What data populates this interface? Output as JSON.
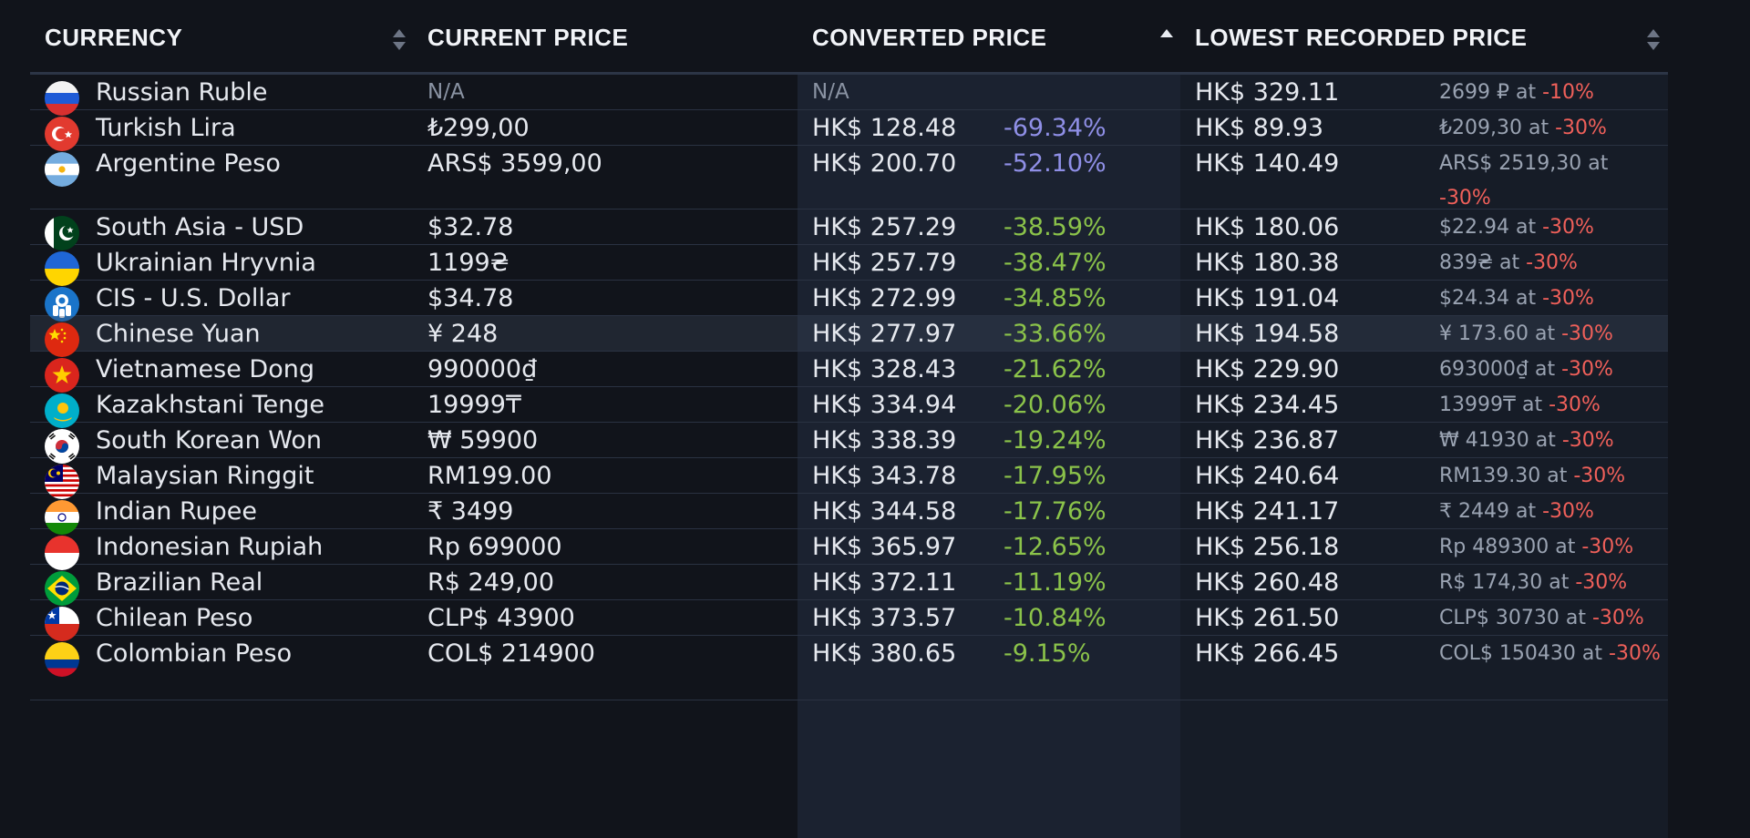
{
  "header": {
    "currency": "CURRENCY",
    "current_price": "CURRENT PRICE",
    "converted_price": "CONVERTED PRICE",
    "lowest_recorded_price": "LOWEST RECORDED PRICE"
  },
  "colors": {
    "background": "#11141b",
    "converted_column": "#1b2230",
    "lowest_column": "#161c27",
    "diff_blue": "#8f8fe6",
    "diff_green": "#8bc34a",
    "discount_red": "#f0605a"
  },
  "rows": [
    {
      "flag": "russia-flag-icon",
      "currency": "Russian Ruble",
      "current": "N/A",
      "converted": "N/A",
      "diff": "",
      "lowest": "HK$ 329.11",
      "lowest_detail": "2699 ₽ at",
      "lowest_pct": "-10%"
    },
    {
      "flag": "turkey-flag-icon",
      "currency": "Turkish Lira",
      "current": "₺299,00",
      "converted": "HK$ 128.48",
      "diff": "-69.34%",
      "lowest": "HK$ 89.93",
      "lowest_detail": "₺209,30 at",
      "lowest_pct": "-30%"
    },
    {
      "flag": "argentina-flag-icon",
      "currency": "Argentine Peso",
      "current": "ARS$ 3599,00",
      "converted": "HK$ 200.70",
      "diff": "-52.10%",
      "lowest": "HK$ 140.49",
      "lowest_detail": "ARS$ 2519,30 at",
      "lowest_pct": "-30%"
    },
    {
      "flag": "pakistan-flag-icon",
      "currency": "South Asia - USD",
      "current": "$32.78",
      "converted": "HK$ 257.29",
      "diff": "-38.59%",
      "lowest": "HK$ 180.06",
      "lowest_detail": "$22.94 at",
      "lowest_pct": "-30%"
    },
    {
      "flag": "ukraine-flag-icon",
      "currency": "Ukrainian Hryvnia",
      "current": "1199₴",
      "converted": "HK$ 257.79",
      "diff": "-38.47%",
      "lowest": "HK$ 180.38",
      "lowest_detail": "839₴ at",
      "lowest_pct": "-30%"
    },
    {
      "flag": "cis-emblem-icon",
      "currency": "CIS - U.S. Dollar",
      "current": "$34.78",
      "converted": "HK$ 272.99",
      "diff": "-34.85%",
      "lowest": "HK$ 191.04",
      "lowest_detail": "$24.34 at",
      "lowest_pct": "-30%"
    },
    {
      "flag": "china-flag-icon",
      "currency": "Chinese Yuan",
      "current": "¥ 248",
      "converted": "HK$ 277.97",
      "diff": "-33.66%",
      "lowest": "HK$ 194.58",
      "lowest_detail": "¥ 173.60 at",
      "lowest_pct": "-30%"
    },
    {
      "flag": "vietnam-flag-icon",
      "currency": "Vietnamese Dong",
      "current": "990000₫",
      "converted": "HK$ 328.43",
      "diff": "-21.62%",
      "lowest": "HK$ 229.90",
      "lowest_detail": "693000₫ at",
      "lowest_pct": "-30%"
    },
    {
      "flag": "kazakhstan-flag-icon",
      "currency": "Kazakhstani Tenge",
      "current": "19999₸",
      "converted": "HK$ 334.94",
      "diff": "-20.06%",
      "lowest": "HK$ 234.45",
      "lowest_detail": "13999₸ at",
      "lowest_pct": "-30%"
    },
    {
      "flag": "south-korea-flag-icon",
      "currency": "South Korean Won",
      "current": "₩ 59900",
      "converted": "HK$ 338.39",
      "diff": "-19.24%",
      "lowest": "HK$ 236.87",
      "lowest_detail": "₩ 41930 at",
      "lowest_pct": "-30%"
    },
    {
      "flag": "malaysia-flag-icon",
      "currency": "Malaysian Ringgit",
      "current": "RM199.00",
      "converted": "HK$ 343.78",
      "diff": "-17.95%",
      "lowest": "HK$ 240.64",
      "lowest_detail": "RM139.30 at",
      "lowest_pct": "-30%"
    },
    {
      "flag": "india-flag-icon",
      "currency": "Indian Rupee",
      "current": "₹ 3499",
      "converted": "HK$ 344.58",
      "diff": "-17.76%",
      "lowest": "HK$ 241.17",
      "lowest_detail": "₹ 2449 at",
      "lowest_pct": "-30%"
    },
    {
      "flag": "indonesia-flag-icon",
      "currency": "Indonesian Rupiah",
      "current": "Rp 699000",
      "converted": "HK$ 365.97",
      "diff": "-12.65%",
      "lowest": "HK$ 256.18",
      "lowest_detail": "Rp 489300 at",
      "lowest_pct": "-30%"
    },
    {
      "flag": "brazil-flag-icon",
      "currency": "Brazilian Real",
      "current": "R$ 249,00",
      "converted": "HK$ 372.11",
      "diff": "-11.19%",
      "lowest": "HK$ 260.48",
      "lowest_detail": "R$ 174,30 at",
      "lowest_pct": "-30%"
    },
    {
      "flag": "chile-flag-icon",
      "currency": "Chilean Peso",
      "current": "CLP$ 43900",
      "converted": "HK$ 373.57",
      "diff": "-10.84%",
      "lowest": "HK$ 261.50",
      "lowest_detail": "CLP$ 30730 at",
      "lowest_pct": "-30%"
    },
    {
      "flag": "colombia-flag-icon",
      "currency": "Colombian Peso",
      "current": "COL$ 214900",
      "converted": "HK$ 380.65",
      "diff": "-9.15%",
      "lowest": "HK$ 266.45",
      "lowest_detail": "COL$ 150430 at",
      "lowest_pct": "-30%"
    }
  ]
}
